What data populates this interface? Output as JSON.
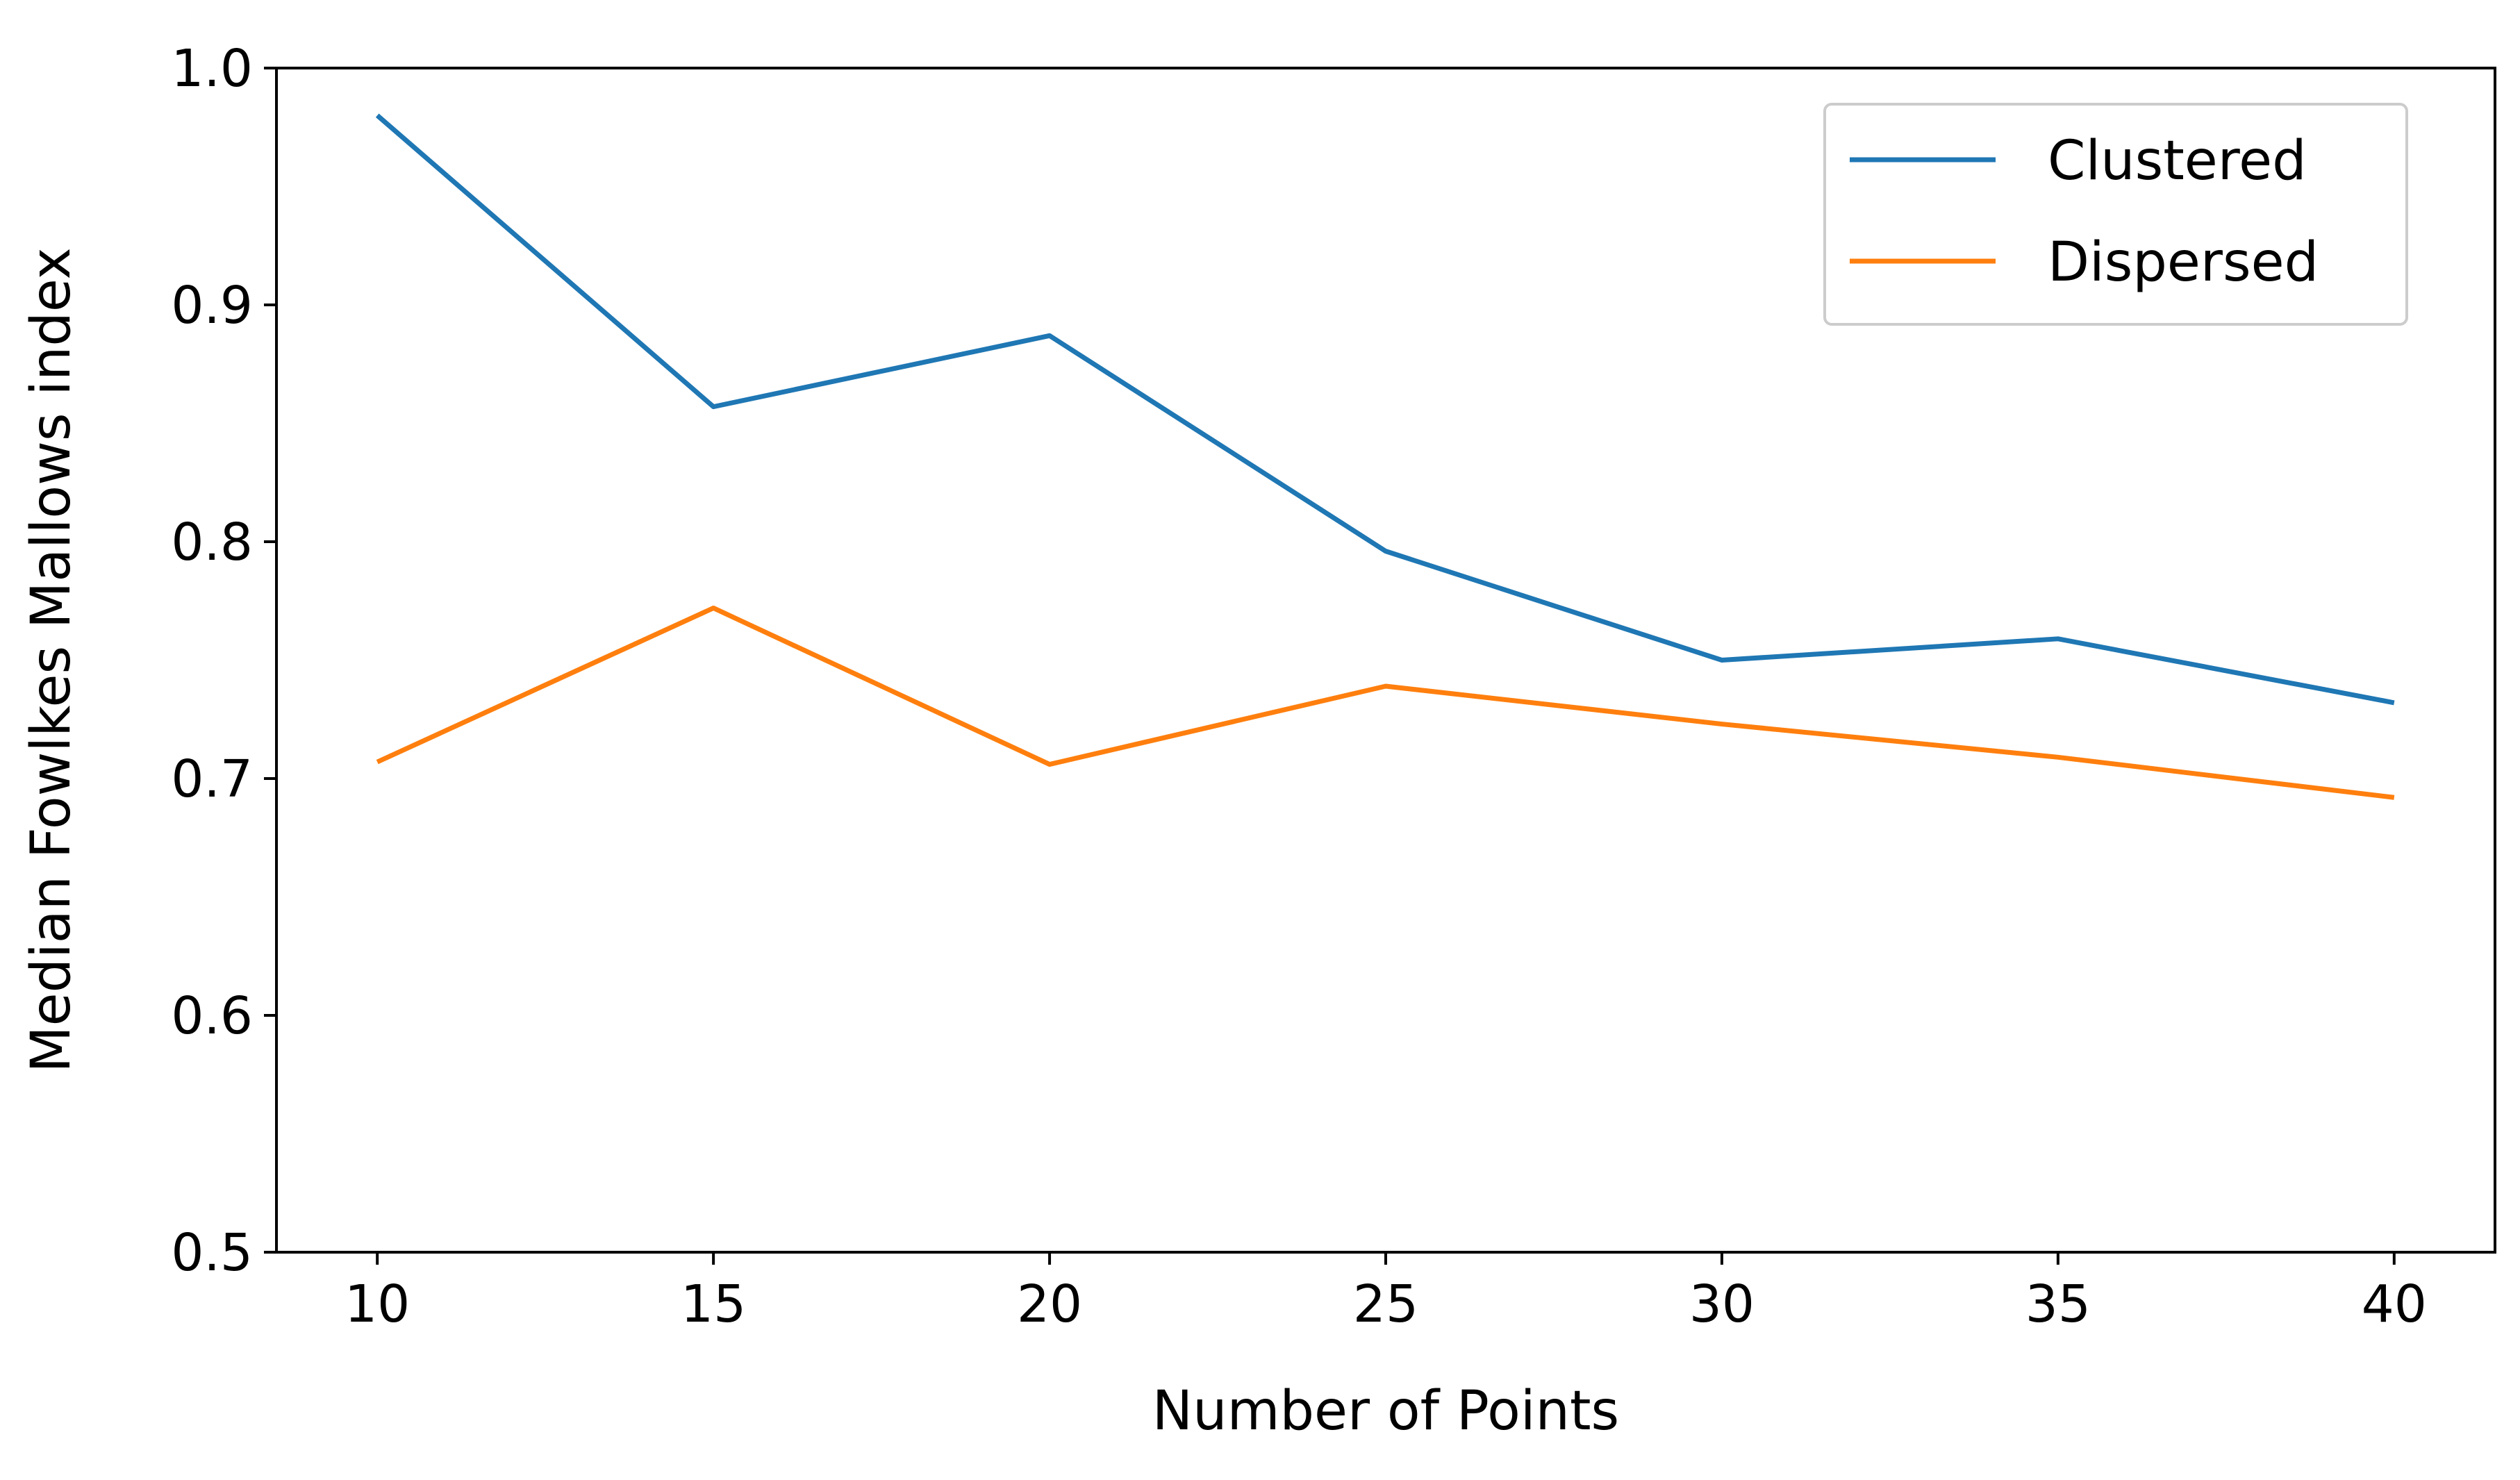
{
  "chart_data": {
    "type": "line",
    "title": "",
    "xlabel": "Number of Points",
    "ylabel": "Median Fowlkes Mallows index",
    "x": [
      10,
      15,
      20,
      25,
      30,
      35,
      40
    ],
    "x_ticks": [
      "10",
      "15",
      "20",
      "25",
      "30",
      "35",
      "40"
    ],
    "y_ticks": [
      "0.5",
      "0.6",
      "0.7",
      "0.8",
      "0.9",
      "1.0"
    ],
    "xlim": [
      8.5,
      41.5
    ],
    "ylim": [
      0.5,
      1.0
    ],
    "grid": false,
    "legend_position": "top-right",
    "series": [
      {
        "name": "Clustered",
        "color": "#1f77b4",
        "values": [
          0.98,
          0.857,
          0.887,
          0.796,
          0.75,
          0.759,
          0.732
        ]
      },
      {
        "name": "Dispersed",
        "color": "#ff7f0e",
        "values": [
          0.707,
          0.772,
          0.706,
          0.739,
          0.723,
          0.709,
          0.692
        ]
      }
    ]
  }
}
